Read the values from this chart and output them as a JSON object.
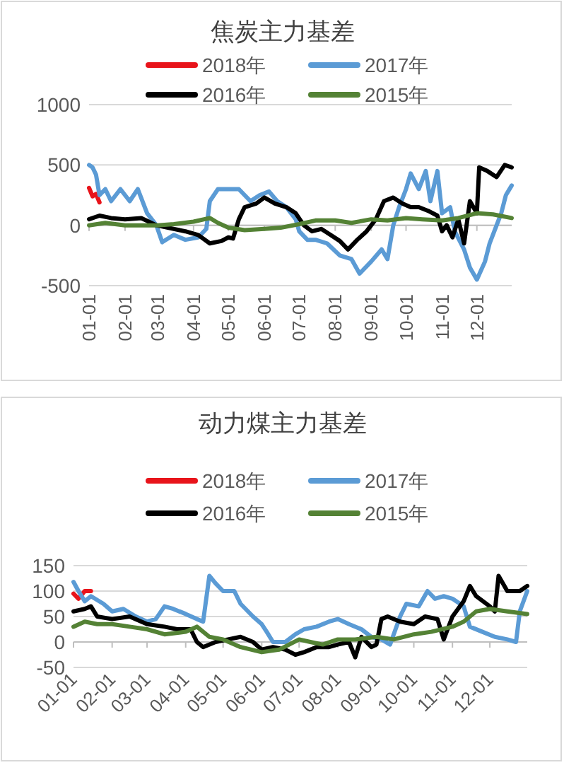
{
  "chart_data": [
    {
      "type": "line",
      "title": "焦炭主力基差",
      "legend": "top",
      "grid": "y",
      "xlim": [
        "--01-01",
        "--12-31"
      ],
      "xticks": [
        {
          "value": "--01-01",
          "label": "01-01"
        },
        {
          "value": "--02-01",
          "label": "02-01"
        },
        {
          "value": "--03-01",
          "label": "03-01"
        },
        {
          "value": "--04-01",
          "label": "04-01"
        },
        {
          "value": "--05-01",
          "label": "05-01"
        },
        {
          "value": "--06-01",
          "label": "06-01"
        },
        {
          "value": "--07-01",
          "label": "07-01"
        },
        {
          "value": "--08-01",
          "label": "08-01"
        },
        {
          "value": "--09-01",
          "label": "09-01"
        },
        {
          "value": "--10-01",
          "label": "10-01"
        },
        {
          "value": "--11-01",
          "label": "11-01"
        },
        {
          "value": "--12-01",
          "label": "12-01"
        }
      ],
      "ylim": [
        -500,
        1000
      ],
      "yticks": [
        -500,
        0,
        500,
        1000
      ],
      "series": [
        {
          "name": "2018年",
          "color": "#e8141b",
          "x": [
            "--01-01",
            "--01-04",
            "--01-07",
            "--01-10"
          ],
          "values": [
            310,
            240,
            260,
            190
          ]
        },
        {
          "name": "2017年",
          "color": "#5b9bd5",
          "x": [
            "--01-01",
            "--01-04",
            "--01-07",
            "--01-10",
            "--01-15",
            "--01-20",
            "--01-28",
            "--02-05",
            "--02-12",
            "--02-20",
            "--02-28",
            "--03-05",
            "--03-15",
            "--03-25",
            "--04-05",
            "--04-12",
            "--04-15",
            "--04-22",
            "--05-01",
            "--05-10",
            "--05-20",
            "--05-28",
            "--06-05",
            "--06-12",
            "--06-20",
            "--06-28",
            "--07-01",
            "--07-08",
            "--07-15",
            "--07-25",
            "--08-05",
            "--08-15",
            "--08-22",
            "--09-01",
            "--09-10",
            "--09-15",
            "--09-20",
            "--09-25",
            "--10-01",
            "--10-05",
            "--10-12",
            "--10-18",
            "--10-22",
            "--10-28",
            "--11-01",
            "--11-08",
            "--11-12",
            "--11-20",
            "--11-25",
            "--12-01",
            "--12-08",
            "--12-12",
            "--12-18",
            "--12-22",
            "--12-26",
            "--12-31"
          ],
          "values": [
            500,
            480,
            420,
            250,
            300,
            200,
            300,
            200,
            300,
            100,
            0,
            -140,
            -80,
            -120,
            -100,
            -30,
            200,
            300,
            300,
            300,
            200,
            250,
            280,
            200,
            150,
            50,
            -50,
            -120,
            -120,
            -150,
            -250,
            -280,
            -400,
            -300,
            -200,
            -280,
            0,
            150,
            300,
            430,
            300,
            450,
            200,
            450,
            100,
            150,
            -50,
            -200,
            -350,
            -450,
            -300,
            -150,
            0,
            100,
            250,
            330
          ]
        },
        {
          "name": "2016年",
          "color": "#000000",
          "x": [
            "--01-01",
            "--01-10",
            "--01-20",
            "--02-01",
            "--02-15",
            "--02-28",
            "--03-10",
            "--03-25",
            "--04-05",
            "--04-15",
            "--04-25",
            "--05-01",
            "--05-05",
            "--05-10",
            "--05-15",
            "--05-25",
            "--06-01",
            "--06-10",
            "--06-20",
            "--06-28",
            "--07-05",
            "--07-12",
            "--07-20",
            "--07-28",
            "--08-05",
            "--08-12",
            "--08-20",
            "--08-28",
            "--09-05",
            "--09-12",
            "--09-20",
            "--09-28",
            "--10-05",
            "--10-12",
            "--10-20",
            "--10-28",
            "--11-01",
            "--11-05",
            "--11-10",
            "--11-15",
            "--11-20",
            "--11-25",
            "--12-01",
            "--12-03",
            "--12-10",
            "--12-18",
            "--12-25",
            "--12-31"
          ],
          "values": [
            50,
            80,
            60,
            50,
            60,
            0,
            -20,
            -50,
            -80,
            -150,
            -130,
            -100,
            -110,
            50,
            150,
            180,
            230,
            180,
            150,
            100,
            0,
            -50,
            -30,
            -80,
            -130,
            -200,
            -120,
            -50,
            50,
            200,
            230,
            180,
            150,
            150,
            120,
            80,
            -50,
            0,
            -100,
            50,
            -150,
            200,
            100,
            480,
            450,
            400,
            500,
            480
          ]
        },
        {
          "name": "2015年",
          "color": "#548235",
          "x": [
            "--01-01",
            "--01-15",
            "--02-01",
            "--02-15",
            "--03-01",
            "--03-15",
            "--04-01",
            "--04-15",
            "--04-22",
            "--05-01",
            "--05-15",
            "--06-01",
            "--06-15",
            "--07-01",
            "--07-15",
            "--08-01",
            "--08-15",
            "--09-01",
            "--09-15",
            "--10-01",
            "--10-15",
            "--11-01",
            "--11-15",
            "--12-01",
            "--12-15",
            "--12-31"
          ],
          "values": [
            0,
            20,
            0,
            0,
            0,
            10,
            30,
            60,
            20,
            -20,
            -40,
            -30,
            -20,
            10,
            40,
            40,
            20,
            50,
            40,
            60,
            50,
            40,
            60,
            100,
            90,
            60
          ]
        }
      ]
    },
    {
      "type": "line",
      "title": "动力煤主力基差",
      "legend": "top",
      "grid": "y",
      "xlim": [
        "--01-01",
        "--12-31"
      ],
      "xticks": [
        {
          "value": "--01-01",
          "label": "01-01"
        },
        {
          "value": "--02-01",
          "label": "02-01"
        },
        {
          "value": "--03-01",
          "label": "03-01"
        },
        {
          "value": "--04-01",
          "label": "04-01"
        },
        {
          "value": "--05-01",
          "label": "05-01"
        },
        {
          "value": "--06-01",
          "label": "06-01"
        },
        {
          "value": "--07-01",
          "label": "07-01"
        },
        {
          "value": "--08-01",
          "label": "08-01"
        },
        {
          "value": "--09-01",
          "label": "09-01"
        },
        {
          "value": "--10-01",
          "label": "10-01"
        },
        {
          "value": "--11-01",
          "label": "11-01"
        },
        {
          "value": "--12-01",
          "label": "12-01"
        }
      ],
      "ylim": [
        -50,
        150
      ],
      "yticks": [
        -50,
        0,
        50,
        100,
        150
      ],
      "series": [
        {
          "name": "2018年",
          "color": "#e8141b",
          "x": [
            "--01-01",
            "--01-05",
            "--01-10",
            "--01-15"
          ],
          "values": [
            95,
            85,
            100,
            100
          ]
        },
        {
          "name": "2017年",
          "color": "#5b9bd5",
          "x": [
            "--01-01",
            "--01-05",
            "--01-10",
            "--01-15",
            "--01-25",
            "--02-01",
            "--02-10",
            "--02-20",
            "--03-01",
            "--03-08",
            "--03-15",
            "--03-22",
            "--04-01",
            "--04-10",
            "--04-15",
            "--04-20",
            "--04-25",
            "--05-01",
            "--05-10",
            "--05-15",
            "--05-25",
            "--06-01",
            "--06-05",
            "--06-10",
            "--06-20",
            "--06-28",
            "--07-05",
            "--07-15",
            "--07-25",
            "--08-01",
            "--08-10",
            "--08-20",
            "--08-28",
            "--09-05",
            "--09-12",
            "--09-20",
            "--09-25",
            "--10-05",
            "--10-12",
            "--10-18",
            "--10-25",
            "--11-01",
            "--11-10",
            "--11-15",
            "--11-25",
            "--12-05",
            "--12-15",
            "--12-22",
            "--12-25",
            "--12-31"
          ],
          "values": [
            118,
            100,
            80,
            90,
            75,
            60,
            65,
            50,
            40,
            45,
            70,
            65,
            55,
            45,
            40,
            130,
            115,
            100,
            100,
            75,
            50,
            35,
            20,
            0,
            0,
            15,
            25,
            30,
            40,
            45,
            35,
            25,
            10,
            5,
            -5,
            50,
            75,
            70,
            100,
            85,
            90,
            85,
            70,
            30,
            20,
            10,
            5,
            0,
            60,
            100
          ]
        },
        {
          "name": "2016年",
          "color": "#000000",
          "x": [
            "--01-01",
            "--01-10",
            "--01-15",
            "--01-20",
            "--02-01",
            "--02-15",
            "--03-01",
            "--03-15",
            "--03-25",
            "--04-05",
            "--04-10",
            "--04-15",
            "--04-25",
            "--05-05",
            "--05-15",
            "--05-25",
            "--06-01",
            "--06-10",
            "--06-20",
            "--06-28",
            "--07-05",
            "--07-15",
            "--07-25",
            "--08-01",
            "--08-10",
            "--08-15",
            "--08-20",
            "--08-28",
            "--09-01",
            "--09-05",
            "--09-10",
            "--09-20",
            "--10-01",
            "--10-10",
            "--10-20",
            "--10-25",
            "--11-01",
            "--11-10",
            "--11-15",
            "--11-20",
            "--12-01",
            "--12-05",
            "--12-08",
            "--12-15",
            "--12-25",
            "--12-31"
          ],
          "values": [
            60,
            65,
            70,
            50,
            45,
            50,
            35,
            30,
            25,
            25,
            0,
            -10,
            0,
            5,
            10,
            0,
            -15,
            -10,
            -15,
            -25,
            -20,
            -10,
            -10,
            -5,
            0,
            -30,
            10,
            -10,
            -5,
            45,
            50,
            40,
            35,
            50,
            45,
            5,
            50,
            80,
            110,
            90,
            70,
            60,
            130,
            100,
            100,
            110
          ]
        },
        {
          "name": "2015年",
          "color": "#548235",
          "x": [
            "--01-01",
            "--01-10",
            "--01-20",
            "--02-01",
            "--02-15",
            "--03-01",
            "--03-15",
            "--04-01",
            "--04-10",
            "--04-20",
            "--05-01",
            "--05-15",
            "--06-01",
            "--06-15",
            "--07-01",
            "--07-10",
            "--07-20",
            "--08-01",
            "--08-15",
            "--09-01",
            "--09-15",
            "--10-01",
            "--10-15",
            "--11-01",
            "--11-10",
            "--11-20",
            "--12-01",
            "--12-15",
            "--12-31"
          ],
          "values": [
            30,
            40,
            35,
            35,
            30,
            25,
            15,
            20,
            30,
            10,
            5,
            -10,
            -20,
            -15,
            5,
            0,
            -5,
            5,
            5,
            10,
            5,
            15,
            20,
            30,
            40,
            60,
            65,
            60,
            55
          ]
        }
      ]
    }
  ]
}
